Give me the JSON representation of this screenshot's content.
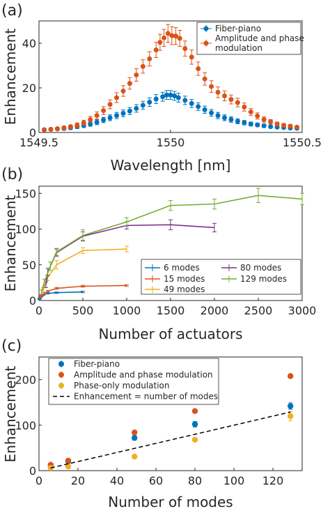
{
  "colors": {
    "blue": "#0072BD",
    "orange": "#D95319",
    "yellow": "#EDB120",
    "purple": "#7E2F8E",
    "green": "#77AC30"
  },
  "chart_data": [
    {
      "panel": "(a)",
      "type": "scatter",
      "xlabel": "Wavelength [nm]",
      "ylabel": "Enhancement",
      "xlim": [
        1549.5,
        1550.5
      ],
      "ylim": [
        0,
        50
      ],
      "xticks": [
        "1549.5",
        "1550",
        "1550.5"
      ],
      "yticks": [
        "0",
        "20",
        "40"
      ],
      "legend_position": "top-right",
      "series": [
        {
          "name": "Fiber-piano",
          "color": "blue",
          "x": [
            1549.52,
            1549.545,
            1549.57,
            1549.595,
            1549.62,
            1549.645,
            1549.67,
            1549.695,
            1549.72,
            1549.745,
            1549.77,
            1549.795,
            1549.82,
            1549.845,
            1549.87,
            1549.895,
            1549.92,
            1549.945,
            1549.97,
            1549.985,
            1550.0,
            1550.015,
            1550.03,
            1550.055,
            1550.08,
            1550.105,
            1550.13,
            1550.155,
            1550.18,
            1550.205,
            1550.23,
            1550.255,
            1550.28,
            1550.305,
            1550.33,
            1550.355,
            1550.38,
            1550.405,
            1550.43,
            1550.455,
            1550.48
          ],
          "y": [
            1.2,
            1.4,
            1.6,
            1.8,
            2.1,
            2.6,
            3.1,
            3.8,
            4.6,
            5.6,
            6.6,
            7.6,
            8.6,
            9.6,
            10.8,
            12.2,
            13.6,
            15.0,
            16.0,
            16.8,
            16.8,
            16.4,
            15.6,
            14.4,
            13.0,
            11.6,
            10.2,
            8.8,
            7.6,
            6.6,
            5.8,
            5.0,
            4.4,
            3.8,
            3.4,
            3.0,
            2.6,
            2.4,
            2.2,
            2.0,
            1.9
          ],
          "err": [
            0.4,
            0.4,
            0.5,
            0.6,
            0.7,
            0.8,
            0.9,
            1.0,
            1.1,
            1.2,
            1.3,
            1.4,
            1.5,
            1.6,
            1.7,
            1.8,
            1.9,
            2.0,
            2.0,
            2.0,
            2.0,
            2.0,
            2.0,
            1.9,
            1.8,
            1.7,
            1.6,
            1.5,
            1.4,
            1.3,
            1.2,
            1.1,
            1.0,
            0.9,
            0.8,
            0.7,
            0.6,
            0.6,
            0.5,
            0.5,
            0.5
          ]
        },
        {
          "name": "Amplitude and phase modulation",
          "color": "orange",
          "x": [
            1549.52,
            1549.545,
            1549.57,
            1549.595,
            1549.62,
            1549.645,
            1549.67,
            1549.695,
            1549.72,
            1549.745,
            1549.77,
            1549.795,
            1549.82,
            1549.845,
            1549.87,
            1549.895,
            1549.92,
            1549.945,
            1549.96,
            1549.975,
            1549.99,
            1550.005,
            1550.02,
            1550.035,
            1550.055,
            1550.08,
            1550.105,
            1550.13,
            1550.155,
            1550.18,
            1550.205,
            1550.23,
            1550.255,
            1550.28,
            1550.305,
            1550.33,
            1550.355,
            1550.38,
            1550.405,
            1550.43,
            1550.455,
            1550.48
          ],
          "y": [
            1.2,
            1.4,
            1.7,
            2.1,
            2.6,
            3.3,
            4.3,
            5.8,
            7.6,
            9.8,
            12.6,
            15.6,
            18.6,
            22.0,
            25.8,
            29.6,
            33.0,
            37.0,
            40.4,
            42.4,
            44.4,
            43.4,
            43.2,
            42.2,
            37.6,
            33.8,
            28.6,
            24.0,
            20.6,
            18.0,
            16.4,
            14.8,
            13.4,
            11.4,
            9.2,
            7.4,
            5.8,
            4.8,
            3.8,
            3.2,
            2.8,
            2.4
          ],
          "err": [
            0.4,
            0.5,
            0.6,
            0.7,
            0.8,
            1.0,
            1.2,
            1.4,
            1.6,
            1.8,
            2.0,
            2.2,
            2.4,
            2.6,
            2.8,
            3.0,
            3.2,
            3.4,
            3.6,
            3.8,
            4.0,
            4.0,
            3.8,
            3.6,
            3.4,
            3.2,
            3.0,
            2.8,
            2.6,
            2.4,
            2.2,
            2.0,
            1.9,
            1.8,
            1.6,
            1.4,
            1.2,
            1.0,
            0.9,
            0.8,
            0.7,
            0.6
          ]
        }
      ]
    },
    {
      "panel": "(b)",
      "type": "line",
      "xlabel": "Number of actuators",
      "ylabel": "Enhancement",
      "xlim": [
        0,
        3000
      ],
      "ylim": [
        0,
        160
      ],
      "xticks": [
        "0",
        "500",
        "1000",
        "1500",
        "2000",
        "2500",
        "3000"
      ],
      "yticks": [
        "0",
        "50",
        "100",
        "150"
      ],
      "legend_position": "bottom-right",
      "series": [
        {
          "name": "6 modes",
          "color": "blue",
          "x": [
            6,
            12,
            25,
            50,
            100,
            200,
            500
          ],
          "y": [
            2,
            4,
            6,
            8,
            10,
            11,
            12
          ],
          "err": [
            0.5,
            0.6,
            0.7,
            0.8,
            0.9,
            1.0,
            1.0
          ]
        },
        {
          "name": "15 modes",
          "color": "orange",
          "x": [
            15,
            30,
            60,
            100,
            200,
            500,
            1000
          ],
          "y": [
            4,
            7,
            10,
            13,
            17,
            20,
            21
          ],
          "err": [
            0.6,
            0.8,
            1.0,
            1.2,
            1.3,
            1.3,
            1.2
          ]
        },
        {
          "name": "49 modes",
          "color": "yellow",
          "x": [
            49,
            100,
            200,
            500,
            1000
          ],
          "y": [
            15,
            32,
            50,
            70,
            72
          ],
          "err": [
            3,
            4,
            6,
            4,
            4
          ]
        },
        {
          "name": "80 modes",
          "color": "purple",
          "x": [
            80,
            100,
            200,
            500,
            1000,
            1500,
            2000
          ],
          "y": [
            22,
            40,
            67,
            90,
            105,
            106,
            102
          ],
          "err": [
            4,
            5,
            5,
            6,
            5,
            7,
            6
          ]
        },
        {
          "name": "129 modes",
          "color": "green",
          "x": [
            30,
            60,
            129,
            200,
            500,
            1000,
            1500,
            2000,
            2500,
            3000
          ],
          "y": [
            12,
            25,
            48,
            68,
            91,
            110,
            133,
            135,
            147,
            142
          ],
          "err": [
            3,
            5,
            6,
            5,
            8,
            6,
            7,
            7,
            10,
            8
          ]
        }
      ]
    },
    {
      "panel": "(c)",
      "type": "scatter",
      "xlabel": "Number of modes",
      "ylabel": "Enhancement",
      "xlim": [
        0,
        135
      ],
      "ylim": [
        0,
        250
      ],
      "xticks": [
        "0",
        "20",
        "40",
        "60",
        "80",
        "100",
        "120"
      ],
      "yticks": [
        "0",
        "100",
        "200"
      ],
      "legend_position": "top-left",
      "series": [
        {
          "name": "Fiber-piano",
          "color": "blue",
          "x": [
            6,
            15,
            49,
            80,
            129
          ],
          "y": [
            12,
            20,
            72,
            102,
            142
          ],
          "err": [
            2,
            3,
            5,
            6,
            7
          ]
        },
        {
          "name": "Amplitude and phase modulation",
          "color": "orange",
          "x": [
            6,
            15,
            49,
            80,
            129
          ],
          "y": [
            13,
            22,
            84,
            131,
            208
          ],
          "err": [
            2,
            2,
            4,
            4,
            4
          ]
        },
        {
          "name": "Phase-only modulation",
          "color": "yellow",
          "x": [
            6,
            15,
            49,
            80,
            129
          ],
          "y": [
            6,
            9,
            31,
            68,
            120
          ],
          "err": [
            1,
            2,
            3,
            4,
            10
          ]
        },
        {
          "name": "Enhancement = number of modes",
          "color": "#000000",
          "style": "dashed",
          "x": [
            6,
            129
          ],
          "y": [
            6,
            129
          ]
        }
      ]
    }
  ]
}
